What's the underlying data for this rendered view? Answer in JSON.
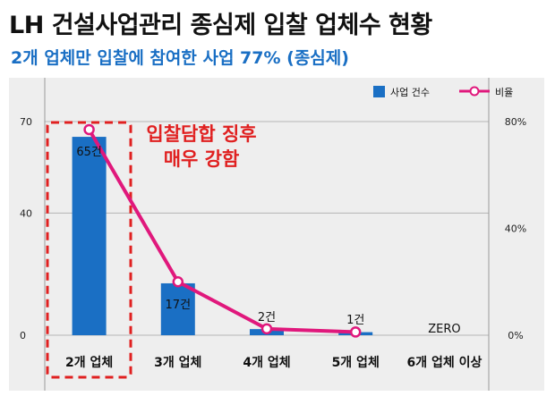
{
  "title": "LH 건설사업관리 종심제 입찰 업체수 현황",
  "subtitle": "2개 업체만 입찰에 참여한 사업 77% (종심제)",
  "annotation": "입찰담합 징후\n매우 강함",
  "colors": {
    "bar": "#1a6fc4",
    "line": "#e0187c",
    "highlight": "#e02020",
    "subtitle": "#1a6fc4"
  },
  "chart_data": {
    "type": "bar",
    "categories": [
      "2개 업체",
      "3개 업체",
      "4개 업체",
      "5개 업체",
      "6개 업체 이상"
    ],
    "series": [
      {
        "name": "사업 건수",
        "type": "bar",
        "axis": "left",
        "values": [
          65,
          17,
          2,
          1,
          0
        ]
      },
      {
        "name": "비율",
        "type": "line",
        "axis": "right",
        "values": [
          77,
          20,
          2.4,
          1.2,
          null
        ]
      }
    ],
    "data_labels": [
      "65건",
      "17건",
      "2건",
      "1건",
      "ZERO"
    ],
    "left_axis": {
      "ticks": [
        "0",
        "40",
        "70"
      ],
      "ylim": [
        0,
        70
      ]
    },
    "right_axis": {
      "ticks": [
        "0%",
        "40%",
        "80%"
      ],
      "ylim": [
        0,
        80
      ]
    },
    "legend": {
      "position": "top-right",
      "items": [
        "사업 건수",
        "비율"
      ]
    },
    "grid": "horizontal"
  }
}
